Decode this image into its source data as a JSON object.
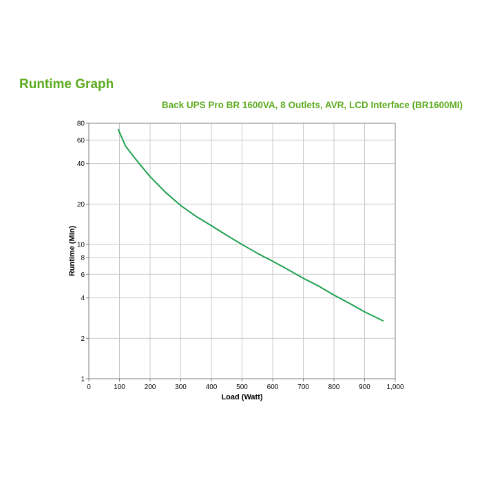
{
  "colors": {
    "title": "#5cab1f",
    "series": "#1fa04f",
    "grid": "#c8c8c8",
    "frame": "#808080"
  },
  "chart_data": {
    "type": "line",
    "title": "Runtime Graph",
    "subtitle": "Back UPS Pro BR 1600VA, 8 Outlets, AVR, LCD Interface (BR1600MI)",
    "xlabel": "Load (Watt)",
    "ylabel": "Runtime (Min)",
    "xlim": [
      0,
      1000
    ],
    "ylim": [
      1,
      80
    ],
    "yscale": "log",
    "grid": true,
    "legend": "none",
    "x_ticks": [
      0,
      100,
      200,
      300,
      400,
      500,
      600,
      700,
      800,
      900,
      1000
    ],
    "x_tick_labels": [
      "0",
      "100",
      "200",
      "300",
      "400",
      "500",
      "600",
      "700",
      "800",
      "900",
      "1,000"
    ],
    "y_ticks": [
      1,
      2,
      4,
      6,
      8,
      10,
      20,
      40,
      60,
      80
    ],
    "y_tick_labels": [
      "1",
      "2",
      "4",
      "6",
      "8",
      "10",
      "20",
      "40",
      "60",
      "80"
    ],
    "series": [
      {
        "x": [
          96,
          120,
          150,
          200,
          250,
          300,
          350,
          400,
          450,
          500,
          550,
          600,
          650,
          700,
          750,
          800,
          850,
          900,
          960
        ],
        "y": [
          72,
          54,
          44,
          32,
          24.5,
          19.5,
          16.2,
          13.8,
          11.7,
          10.0,
          8.6,
          7.5,
          6.5,
          5.6,
          4.9,
          4.2,
          3.65,
          3.15,
          2.7
        ]
      }
    ]
  }
}
